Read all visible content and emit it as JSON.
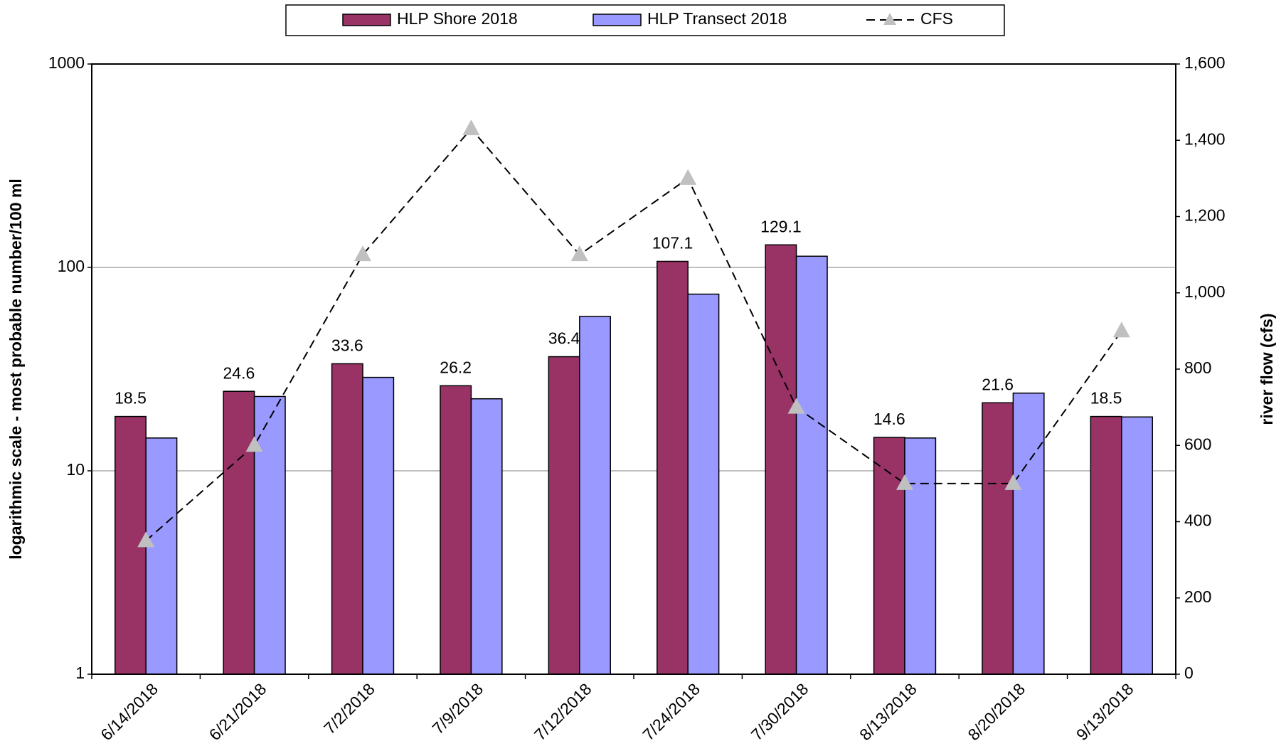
{
  "chart_data": {
    "type": "bar_line",
    "categories": [
      "6/14/2018",
      "6/21/2018",
      "7/2/2018",
      "7/9/2018",
      "7/12/2018",
      "7/24/2018",
      "7/30/2018",
      "8/13/2018",
      "8/20/2018",
      "9/13/2018"
    ],
    "series": [
      {
        "name": "HLP Shore 2018",
        "type": "bar",
        "color": "#993366",
        "data_labels": true,
        "values": [
          18.5,
          24.6,
          33.6,
          26.2,
          36.4,
          107.1,
          129.1,
          14.6,
          21.6,
          18.5
        ]
      },
      {
        "name": "HLP Transect 2018",
        "type": "bar",
        "color": "#9999ff",
        "values": [
          14.5,
          23.2,
          28.8,
          22.6,
          57.4,
          73.9,
          113.5,
          14.5,
          24.1,
          18.4
        ]
      },
      {
        "name": "CFS",
        "type": "line",
        "axis": "y2",
        "color": "#000000",
        "marker_color": "#c0c0c0",
        "values": [
          350,
          600,
          1100,
          1430,
          1100,
          1300,
          700,
          500,
          500,
          900
        ]
      }
    ],
    "ylabel": "logarithmic scale - most probable number/100 ml",
    "y2label": "river flow (cfs)",
    "ylog": true,
    "ylim": [
      1,
      1000
    ],
    "yticks": [
      1,
      10,
      100,
      1000
    ],
    "y2lim": [
      0,
      1600
    ],
    "y2ticks": [
      0,
      200,
      400,
      600,
      800,
      {
        "value": 1000,
        "label": "1,000"
      },
      {
        "value": 1200,
        "label": "1,200"
      },
      {
        "value": 1400,
        "label": "1,400"
      },
      {
        "value": 1600,
        "label": "1,600"
      }
    ],
    "grid": true,
    "legend": "top"
  }
}
